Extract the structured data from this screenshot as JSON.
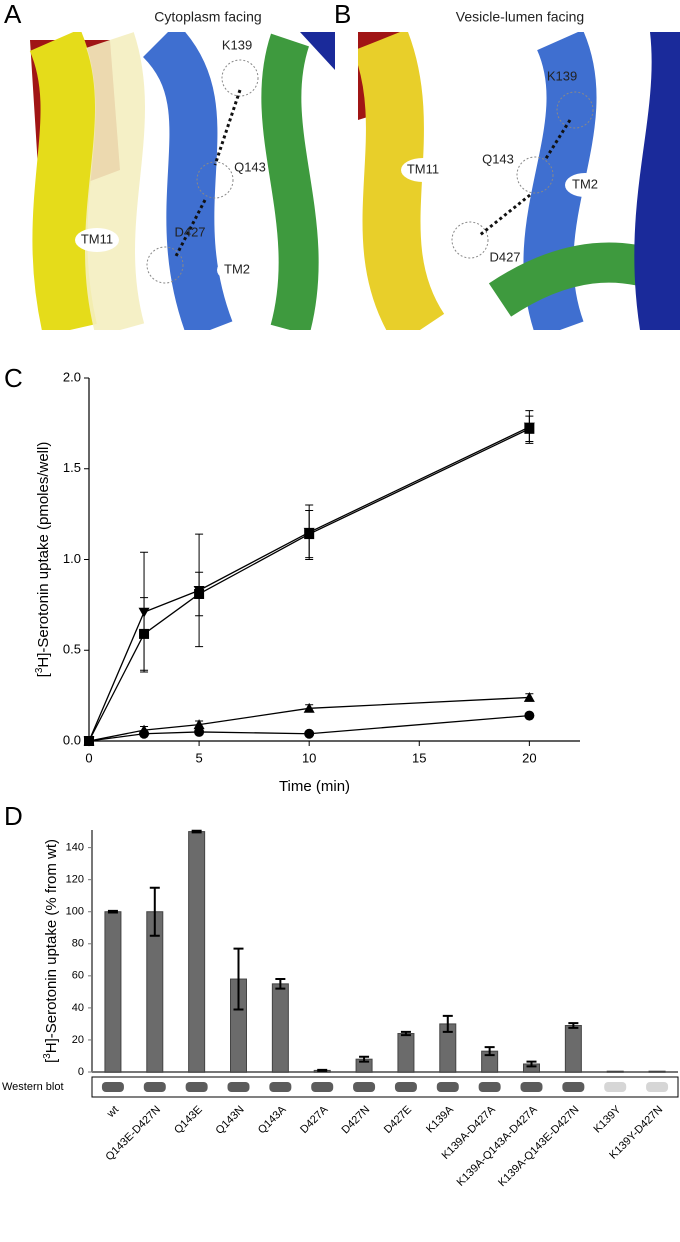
{
  "panel_labels": [
    "A",
    "B",
    "C",
    "D"
  ],
  "structures": [
    {
      "title": "Cytoplasm facing",
      "labels": [
        "K139",
        "Q143",
        "D427",
        "TM11",
        "TM2"
      ]
    },
    {
      "title": "Vesicle-lumen facing",
      "labels": [
        "K139",
        "Q143",
        "D427",
        "TM11",
        "TM2"
      ]
    }
  ],
  "chart_data": [
    {
      "type": "line",
      "xlabel": "Time (min)",
      "ylabel": {
        "prefix": "[",
        "sup": "3",
        "text": "H]-Serotonin uptake (pmoles/well)"
      },
      "x": [
        0,
        2.5,
        5,
        10,
        20
      ],
      "xlim": [
        0,
        22.3
      ],
      "xticks": [
        0,
        5,
        10,
        15,
        20
      ],
      "ylim": [
        0,
        2.0
      ],
      "yticks": [
        {
          "value": 0,
          "label": "0.0"
        },
        {
          "value": 0.5,
          "label": "0.5"
        },
        {
          "value": 1.0,
          "label": "1.0"
        },
        {
          "value": 1.5,
          "label": "1.5"
        },
        {
          "value": 2.0,
          "label": "2.0"
        }
      ],
      "series": [
        {
          "marker": "triangle-down",
          "color": "#000000",
          "values": [
            0,
            0.71,
            0.83,
            1.15,
            1.73
          ],
          "errors": [
            0,
            0.33,
            0.31,
            0.15,
            0.09
          ]
        },
        {
          "marker": "square",
          "color": "#000000",
          "values": [
            0,
            0.59,
            0.81,
            1.14,
            1.72
          ],
          "errors": [
            0,
            0.2,
            0.12,
            0.13,
            0.07
          ]
        },
        {
          "marker": "triangle-up",
          "color": "#000000",
          "values": [
            0,
            0.06,
            0.09,
            0.18,
            0.24
          ],
          "errors": [
            0,
            0.02,
            0.02,
            0.02,
            0.02
          ]
        },
        {
          "marker": "circle",
          "color": "#000000",
          "values": [
            0,
            0.04,
            0.05,
            0.04,
            0.14
          ],
          "errors": [
            0,
            0.01,
            0.01,
            0.01,
            0.01
          ]
        }
      ]
    },
    {
      "type": "bar",
      "ylabel": {
        "prefix": "[",
        "sup": "3",
        "text": "H]-Serotonin uptake (% from wt)"
      },
      "blot_label": "Western blot",
      "categories": [
        "wt",
        "Q143E-D427N",
        "Q143E",
        "Q143N",
        "Q143A",
        "D427A",
        "D427N",
        "D427E",
        "K139A",
        "K139A-D427A",
        "K139A-Q143A-D427A",
        "K139A-Q143E-D427N",
        "K139Y",
        "K139Y-D427N"
      ],
      "values": [
        100,
        100,
        150,
        58,
        55,
        1,
        8,
        24,
        30,
        13,
        5,
        29,
        0.5,
        0.5
      ],
      "errors": [
        0.5,
        15,
        0.5,
        19,
        3,
        0.3,
        1.5,
        1,
        5,
        2.5,
        1.5,
        1.5,
        0,
        0
      ],
      "color": "#6b6b6b",
      "ylim": [
        0,
        151
      ],
      "yticks": [
        0,
        20,
        40,
        60,
        80,
        100,
        120,
        140
      ]
    }
  ]
}
